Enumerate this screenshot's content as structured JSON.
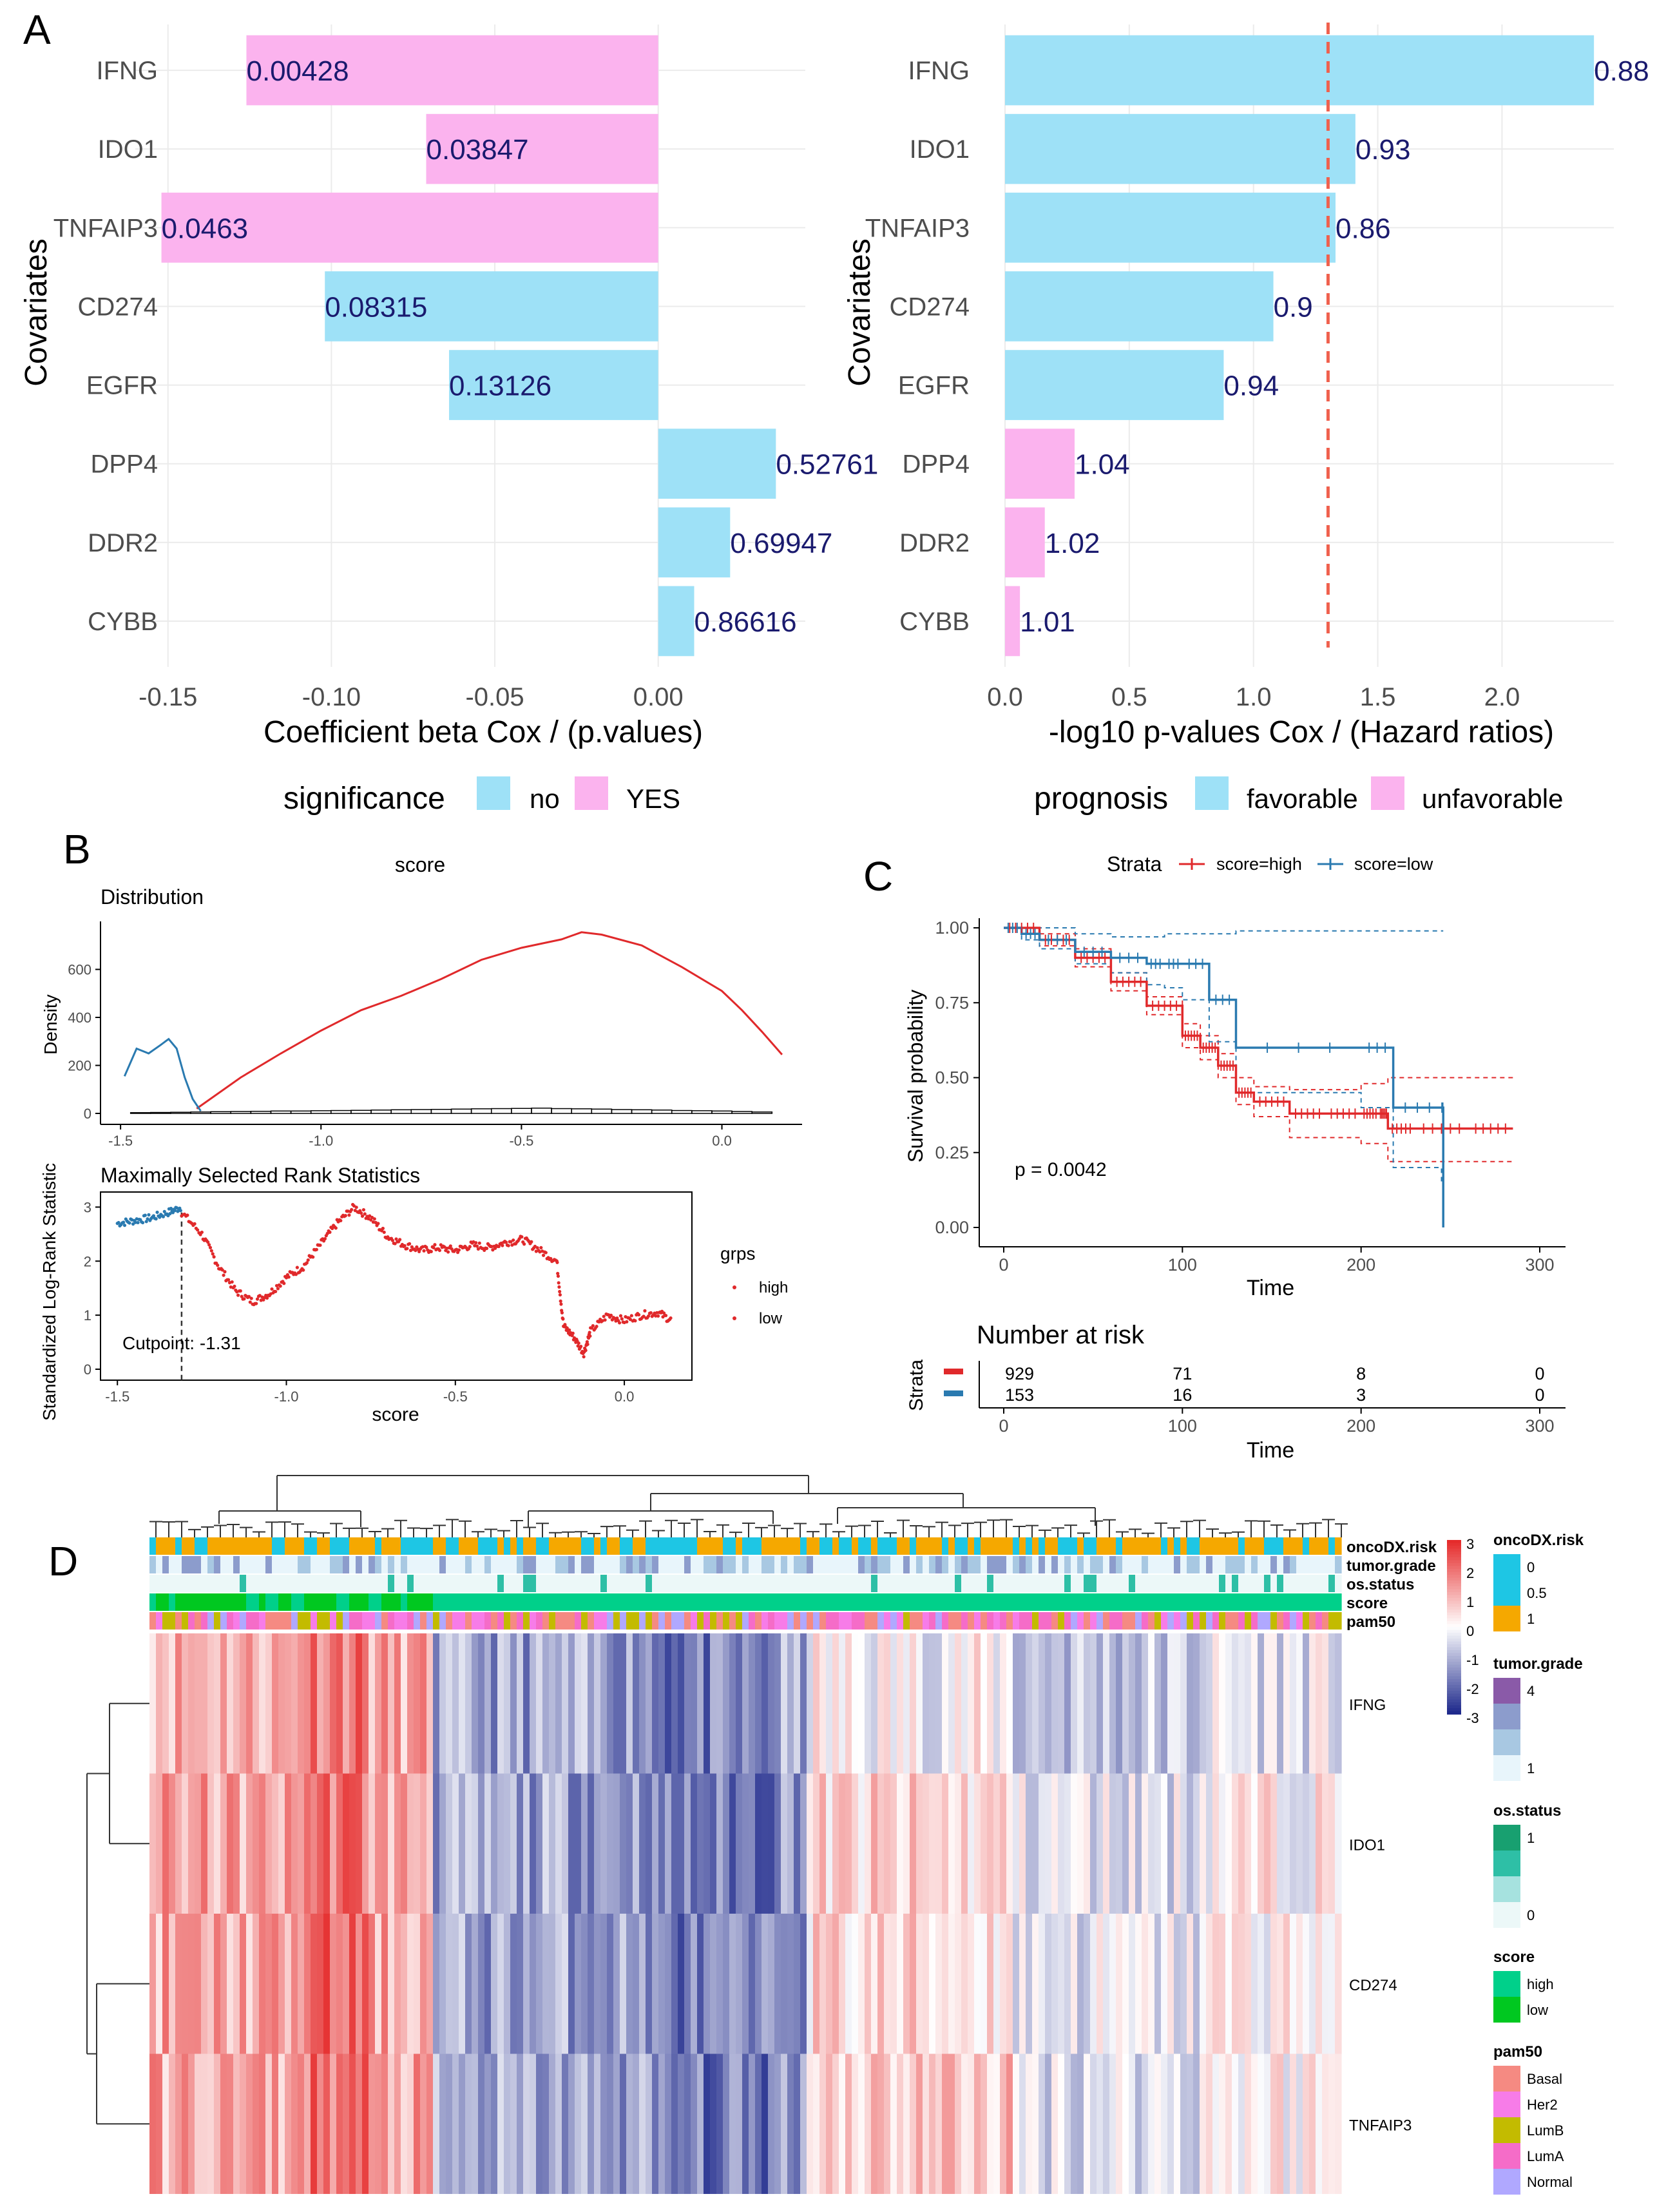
{
  "colors": {
    "cyan": "#9ee1f7",
    "pink": "#fbb3ee",
    "label_navy": "#1a1a6e",
    "red": "#e0292b",
    "blue": "#2a7ab0",
    "threshold": "#f0604d",
    "grid": "#ebebeb",
    "heat_pos": "#e52b2b",
    "heat_neg": "#1f2a8c"
  },
  "panel_labels": {
    "a": "A",
    "b": "B",
    "c": "C",
    "d": "D"
  },
  "chart_data": [
    {
      "type": "bar",
      "panel": "A-left",
      "orientation": "horizontal",
      "categories": [
        "IFNG",
        "IDO1",
        "TNFAIP3",
        "CD274",
        "EGFR",
        "DPP4",
        "DDR2",
        "CYBB"
      ],
      "values": [
        -0.126,
        -0.071,
        -0.152,
        -0.102,
        -0.064,
        0.036,
        0.022,
        0.011
      ],
      "labels": [
        "0.00428",
        "0.03847",
        "0.0463",
        "0.08315",
        "0.13126",
        "0.52761",
        "0.69947",
        "0.86616"
      ],
      "significance": [
        "YES",
        "YES",
        "YES",
        "no",
        "no",
        "no",
        "no",
        "no"
      ],
      "xlim": [
        -0.16,
        0.045
      ],
      "ticks": [
        -0.15,
        -0.1,
        -0.05,
        0.0
      ],
      "tick_labels": [
        "-0.15",
        "-0.10",
        "-0.05",
        "0.00"
      ],
      "xlabel": "Coefficient beta Cox / (p.values)",
      "ylabel": "Covariates",
      "legend": {
        "title": "significance",
        "items": [
          {
            "label": "no",
            "color": "#9ee1f7"
          },
          {
            "label": "YES",
            "color": "#fbb3ee"
          }
        ]
      }
    },
    {
      "type": "bar",
      "panel": "A-right",
      "orientation": "horizontal",
      "categories": [
        "IFNG",
        "IDO1",
        "TNFAIP3",
        "CD274",
        "EGFR",
        "DPP4",
        "DDR2",
        "CYBB"
      ],
      "values": [
        2.37,
        1.41,
        1.33,
        1.08,
        0.88,
        0.28,
        0.16,
        0.06
      ],
      "labels": [
        "0.88",
        "0.93",
        "0.86",
        "0.9",
        "0.94",
        "1.04",
        "1.02",
        "1.01"
      ],
      "prognosis": [
        "favorable",
        "favorable",
        "favorable",
        "favorable",
        "favorable",
        "unfavorable",
        "unfavorable",
        "unfavorable"
      ],
      "threshold": 1.3,
      "xlim": [
        0,
        2.45
      ],
      "ticks": [
        0.0,
        0.5,
        1.0,
        1.5,
        2.0
      ],
      "tick_labels": [
        "0.0",
        "0.5",
        "1.0",
        "1.5",
        "2.0"
      ],
      "xlabel": "-log10 p-values Cox / (Hazard ratios)",
      "ylabel": "Covariates",
      "legend": {
        "title": "prognosis",
        "items": [
          {
            "label": "favorable",
            "color": "#9ee1f7"
          },
          {
            "label": "unfavorable",
            "color": "#fbb3ee"
          }
        ]
      }
    },
    {
      "type": "line",
      "panel": "B-distribution",
      "title": "score",
      "subtitle": "Distribution",
      "xlim": [
        -1.55,
        0.2
      ],
      "ylim": [
        0,
        800
      ],
      "xticks": [
        -1.5,
        -1.0,
        -0.5,
        0.0
      ],
      "xtick_labels": [
        "-1.5",
        "-1.0",
        "-0.5",
        "0.0"
      ],
      "yticks": [
        0,
        200,
        400,
        600
      ],
      "ytick_labels": [
        "0",
        "200",
        "400",
        "600"
      ],
      "ylabel": "Density",
      "series": [
        {
          "name": "high",
          "x": [
            -1.31,
            -1.2,
            -1.1,
            -1.0,
            -0.9,
            -0.8,
            -0.7,
            -0.6,
            -0.5,
            -0.4,
            -0.35,
            -0.3,
            -0.2,
            -0.1,
            0.0,
            0.05,
            0.1,
            0.15
          ],
          "y": [
            20,
            150,
            250,
            345,
            430,
            490,
            560,
            640,
            690,
            725,
            755,
            745,
            700,
            610,
            510,
            430,
            340,
            245
          ]
        },
        {
          "name": "low",
          "x": [
            -1.49,
            -1.46,
            -1.43,
            -1.4,
            -1.38,
            -1.36,
            -1.34,
            -1.32,
            -1.3
          ],
          "y": [
            155,
            270,
            250,
            285,
            310,
            270,
            150,
            60,
            10
          ]
        }
      ],
      "histogram": {
        "x": [
          -1.45,
          -1.4,
          -1.35,
          -1.3,
          -1.25,
          -1.2,
          -1.15,
          -1.1,
          -1.05,
          -1.0,
          -0.95,
          -0.9,
          -0.85,
          -0.8,
          -0.75,
          -0.7,
          -0.65,
          -0.6,
          -0.55,
          -0.5,
          -0.45,
          -0.4,
          -0.35,
          -0.3,
          -0.25,
          -0.2,
          -0.15,
          -0.1,
          -0.05,
          0.0,
          0.05,
          0.1
        ],
        "y": [
          8,
          10,
          12,
          15,
          18,
          20,
          22,
          25,
          25,
          28,
          30,
          32,
          35,
          38,
          40,
          42,
          45,
          48,
          50,
          52,
          55,
          50,
          48,
          45,
          40,
          38,
          35,
          30,
          28,
          25,
          20,
          15
        ]
      }
    },
    {
      "type": "scatter",
      "panel": "B-maxstat",
      "title": "Maximally Selected Rank Statistics",
      "xlabel": "score",
      "ylabel": "Standardized Log-Rank Statistic",
      "xlim": [
        -1.55,
        0.2
      ],
      "ylim": [
        0,
        3.1
      ],
      "xticks": [
        -1.5,
        -1.0,
        -0.5,
        0.0
      ],
      "xtick_labels": [
        "-1.5",
        "-1.0",
        "-0.5",
        "0.0"
      ],
      "yticks": [
        0,
        1,
        2,
        3
      ],
      "ytick_labels": [
        "0",
        "1",
        "2",
        "3"
      ],
      "cutpoint": -1.31,
      "cutpoint_label": "Cutpoint: -1.31",
      "legend": {
        "title": "grps",
        "items": [
          {
            "label": "high",
            "color": "#e0292b"
          },
          {
            "label": "low",
            "color": "#2a7ab0"
          }
        ]
      },
      "series": [
        {
          "name": "low",
          "x": [
            -1.5,
            -1.45,
            -1.4,
            -1.35,
            -1.31
          ],
          "y": [
            2.7,
            2.75,
            2.8,
            2.9,
            3.0
          ]
        },
        {
          "name": "high",
          "x": [
            -1.31,
            -1.25,
            -1.2,
            -1.15,
            -1.1,
            -1.05,
            -1.0,
            -0.95,
            -0.9,
            -0.85,
            -0.8,
            -0.75,
            -0.7,
            -0.65,
            -0.6,
            -0.55,
            -0.5,
            -0.45,
            -0.4,
            -0.35,
            -0.3,
            -0.25,
            -0.2,
            -0.18,
            -0.15,
            -0.12,
            -0.1,
            -0.05,
            0.0,
            0.05,
            0.1,
            0.14
          ],
          "y": [
            2.9,
            2.5,
            1.9,
            1.45,
            1.25,
            1.4,
            1.7,
            1.9,
            2.3,
            2.7,
            3.0,
            2.8,
            2.45,
            2.3,
            2.2,
            2.25,
            2.2,
            2.3,
            2.25,
            2.35,
            2.4,
            2.2,
            2.0,
            0.8,
            0.6,
            0.3,
            0.7,
            1.0,
            0.9,
            1.0,
            1.05,
            0.9
          ]
        }
      ]
    },
    {
      "type": "line",
      "panel": "C-km",
      "legend_title": "Strata",
      "legend": [
        {
          "label": "score=high",
          "color": "#e0292b"
        },
        {
          "label": "score=low",
          "color": "#2a7ab0"
        }
      ],
      "xlabel": "Time",
      "ylabel": "Survival probability",
      "xlim": [
        -10,
        300
      ],
      "ylim": [
        0,
        1
      ],
      "xticks": [
        0,
        100,
        200,
        300
      ],
      "xtick_labels": [
        "0",
        "100",
        "200",
        "300"
      ],
      "yticks": [
        0,
        0.25,
        0.5,
        0.75,
        1.0
      ],
      "ytick_labels": [
        "0.00",
        "0.25",
        "0.50",
        "0.75",
        "1.00"
      ],
      "pvalue": "p = 0.0042",
      "series": [
        {
          "name": "score=high",
          "x": [
            0,
            20,
            40,
            60,
            80,
            100,
            110,
            120,
            130,
            140,
            160,
            180,
            200,
            210,
            215,
            230,
            260,
            285
          ],
          "y": [
            1.0,
            0.96,
            0.9,
            0.82,
            0.74,
            0.64,
            0.6,
            0.54,
            0.45,
            0.42,
            0.38,
            0.38,
            0.38,
            0.38,
            0.33,
            0.33,
            0.33,
            0.33
          ],
          "lower": [
            1.0,
            0.94,
            0.87,
            0.79,
            0.71,
            0.6,
            0.56,
            0.5,
            0.41,
            0.37,
            0.3,
            0.3,
            0.28,
            0.28,
            0.22,
            0.22,
            0.22,
            0.22
          ],
          "upper": [
            1.0,
            0.98,
            0.93,
            0.85,
            0.77,
            0.68,
            0.64,
            0.58,
            0.5,
            0.47,
            0.46,
            0.46,
            0.48,
            0.48,
            0.5,
            0.5,
            0.5,
            0.5
          ]
        },
        {
          "name": "score=low",
          "x": [
            0,
            10,
            20,
            40,
            60,
            80,
            90,
            100,
            115,
            130,
            200,
            218,
            245,
            246
          ],
          "y": [
            1.0,
            0.98,
            0.96,
            0.92,
            0.9,
            0.88,
            0.88,
            0.88,
            0.76,
            0.6,
            0.6,
            0.4,
            0.4,
            0.0
          ],
          "lower": [
            1.0,
            0.96,
            0.93,
            0.88,
            0.85,
            0.81,
            0.8,
            0.76,
            0.62,
            0.45,
            0.4,
            0.2,
            0.15,
            0.0
          ],
          "upper": [
            1.0,
            1.0,
            1.0,
            0.98,
            0.97,
            0.97,
            0.98,
            0.98,
            0.98,
            0.99,
            0.99,
            0.99,
            0.99,
            0.99
          ]
        }
      ]
    },
    {
      "type": "table",
      "panel": "C-risk",
      "title": "Number at risk",
      "row_label": "Strata",
      "columns": [
        0,
        100,
        200,
        300
      ],
      "column_labels": [
        "0",
        "100",
        "200",
        "300"
      ],
      "xlabel": "Time",
      "rows": [
        {
          "name": "score=high",
          "color": "#e0292b",
          "values": [
            "929",
            "71",
            "8",
            "0"
          ]
        },
        {
          "name": "score=low",
          "color": "#2a7ab0",
          "values": [
            "153",
            "16",
            "3",
            "0"
          ]
        }
      ]
    },
    {
      "type": "heatmap",
      "panel": "D",
      "rows": [
        "IFNG",
        "IDO1",
        "CD274",
        "TNFAIP3"
      ],
      "annotation_rows": [
        "oncoDX.risk",
        "tumor.grade",
        "os.status",
        "score",
        "pam50"
      ],
      "color_scale": {
        "ticks": [
          3,
          2,
          1,
          0,
          -1,
          -2,
          -3
        ],
        "tick_labels": [
          "3",
          "2",
          "1",
          "0",
          "-1",
          "-2",
          "-3"
        ]
      },
      "legends": [
        {
          "title": "oncoDX.risk",
          "items": [
            {
              "label": "0",
              "color": "#1ec6e4"
            },
            {
              "label": "0.5",
              "color": "#1ec6e4"
            },
            {
              "label": "1",
              "color": "#f5a800"
            }
          ]
        },
        {
          "title": "tumor.grade",
          "items": [
            {
              "label": "4",
              "color": "#8a5aa8"
            },
            {
              "label": "",
              "color": "#8c9ccc"
            },
            {
              "label": "",
              "color": "#a8c8e2"
            },
            {
              "label": "1",
              "color": "#e8f5fb"
            }
          ]
        },
        {
          "title": "os.status",
          "items": [
            {
              "label": "1",
              "color": "#18a070"
            },
            {
              "label": "",
              "color": "#2ebfa6"
            },
            {
              "label": "",
              "color": "#a6e2df"
            },
            {
              "label": "0",
              "color": "#ecf8f8"
            }
          ]
        },
        {
          "title": "score",
          "items": [
            {
              "label": "high",
              "color": "#00d08a"
            },
            {
              "label": "low",
              "color": "#00c820"
            }
          ]
        },
        {
          "title": "pam50",
          "items": [
            {
              "label": "Basal",
              "color": "#f58a82"
            },
            {
              "label": "Her2",
              "color": "#f77ce8"
            },
            {
              "label": "LumB",
              "color": "#c3bb00"
            },
            {
              "label": "LumA",
              "color": "#f56cc8"
            },
            {
              "label": "Normal",
              "color": "#b0a8ff"
            }
          ]
        }
      ]
    }
  ]
}
